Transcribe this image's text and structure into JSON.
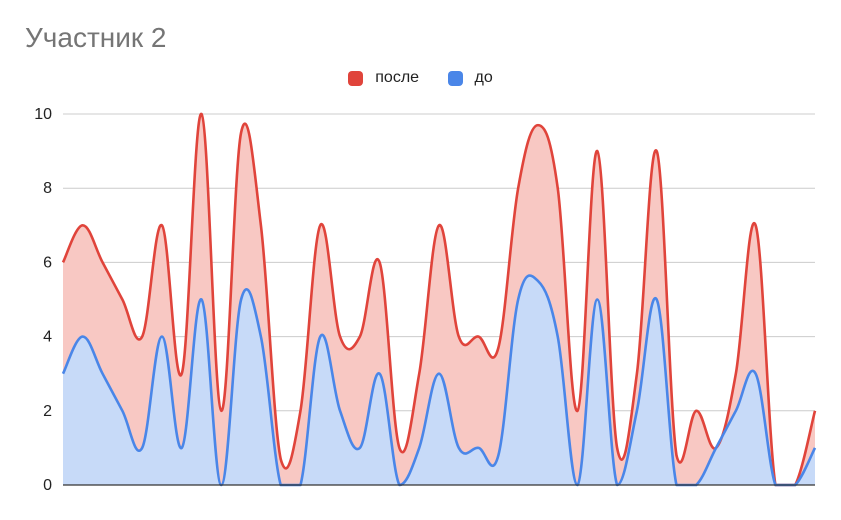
{
  "chart_data": {
    "type": "area",
    "title": "Участник 2",
    "ylim": [
      0,
      10
    ],
    "yticks": [
      "0",
      "2",
      "4",
      "6",
      "8",
      "10"
    ],
    "grid": true,
    "legend_position": "top",
    "series": [
      {
        "name": "после",
        "color": "#e0443b",
        "fill": "#f8c8c3",
        "values": [
          6,
          7,
          6,
          5,
          4,
          7,
          3,
          10,
          2,
          9.5,
          7,
          0.7,
          2,
          7,
          4,
          4,
          6,
          1,
          3,
          7,
          4,
          4,
          3.7,
          8,
          9.7,
          8,
          2,
          9,
          1,
          3,
          9,
          0.8,
          2,
          1,
          3,
          7,
          0,
          0,
          2
        ]
      },
      {
        "name": "до",
        "color": "#4a86e8",
        "fill": "#c7daf8",
        "values": [
          3,
          4,
          3,
          2,
          1,
          4,
          1,
          5,
          0,
          5,
          4,
          0,
          0,
          4,
          2,
          1,
          3,
          0,
          1,
          3,
          1,
          1,
          0.8,
          5,
          5.5,
          4,
          0,
          5,
          0,
          2,
          5,
          0,
          0,
          1,
          2,
          3,
          0,
          0,
          1
        ]
      }
    ]
  }
}
